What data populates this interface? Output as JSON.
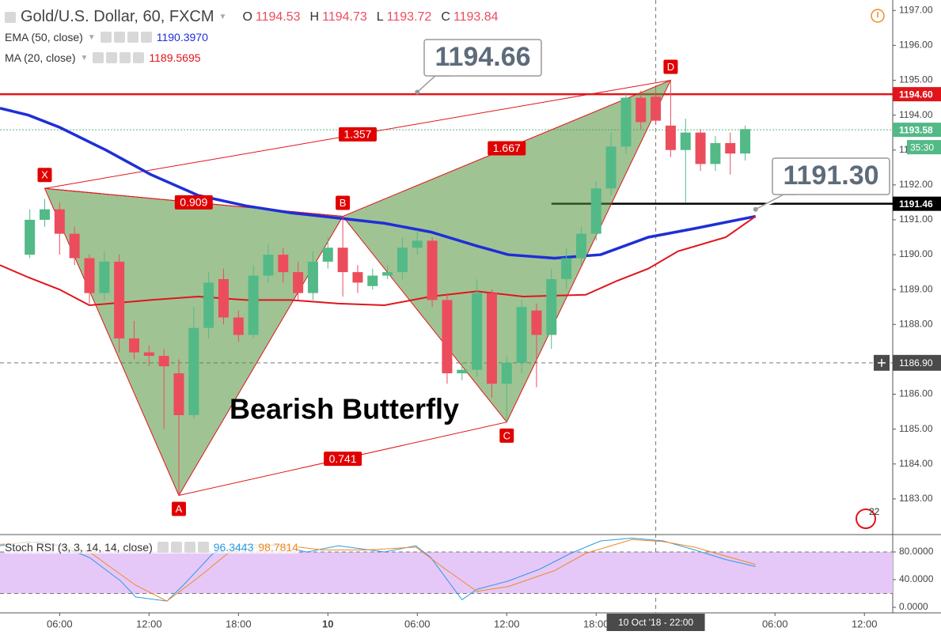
{
  "chart_data": [
    {
      "type": "candlestick",
      "title": "Gold/U.S. Dollar, 60, FXCM",
      "ohlc_labels": [
        "O",
        "H",
        "L",
        "C"
      ],
      "ohlc_values": [
        "1194.53",
        "1194.73",
        "1193.72",
        "1193.84"
      ],
      "x": [
        4,
        5,
        6,
        7,
        8,
        9,
        10,
        11,
        12,
        13,
        14,
        15,
        16,
        17,
        18,
        19,
        20,
        21,
        22,
        23,
        24,
        25,
        26,
        27,
        28,
        29,
        30,
        31,
        32,
        33,
        34,
        35,
        36,
        37,
        38,
        39,
        40,
        41,
        42,
        43,
        44,
        45,
        46,
        47,
        48,
        49,
        50,
        51,
        52
      ],
      "open": [
        1190.0,
        1191.0,
        1191.3,
        1190.6,
        1189.9,
        1188.9,
        1189.8,
        1187.6,
        1187.2,
        1187.1,
        1186.6,
        1185.4,
        1187.9,
        1189.3,
        1188.2,
        1187.7,
        1189.4,
        1190.0,
        1189.5,
        1188.9,
        1189.8,
        1190.2,
        1189.5,
        1189.1,
        1189.4,
        1189.5,
        1190.2,
        1190.4,
        1188.7,
        1186.6,
        1186.7,
        1188.9,
        1186.3,
        1186.9,
        1188.4,
        1187.7,
        1189.3,
        1189.9,
        1190.6,
        1191.9,
        1193.1,
        1194.5,
        1194.53,
        1193.7,
        1193.0,
        1193.5,
        1192.6,
        1193.2,
        1192.9
      ],
      "high": [
        1191.3,
        1191.6,
        1191.5,
        1190.8,
        1190.0,
        1190.1,
        1190.0,
        1188.1,
        1187.4,
        1187.3,
        1187.0,
        1188.5,
        1189.5,
        1189.6,
        1188.4,
        1189.7,
        1190.3,
        1190.2,
        1189.8,
        1190.1,
        1190.5,
        1191.1,
        1189.7,
        1189.6,
        1189.7,
        1190.5,
        1190.7,
        1190.5,
        1188.9,
        1186.9,
        1189.3,
        1189.0,
        1187.1,
        1188.7,
        1188.6,
        1189.6,
        1190.2,
        1190.8,
        1192.1,
        1193.5,
        1194.6,
        1194.7,
        1194.73,
        1195.0,
        1193.9,
        1193.6,
        1193.4,
        1193.5,
        1193.7
      ],
      "low": [
        1189.9,
        1190.8,
        1190.0,
        1189.7,
        1188.6,
        1188.7,
        1187.2,
        1187.0,
        1186.8,
        1185.0,
        1183.1,
        1185.3,
        1187.6,
        1188.0,
        1187.5,
        1187.6,
        1189.2,
        1189.2,
        1188.7,
        1188.7,
        1189.6,
        1188.8,
        1188.9,
        1189.0,
        1189.3,
        1189.3,
        1190.0,
        1188.5,
        1186.3,
        1186.4,
        1186.5,
        1185.9,
        1185.2,
        1186.6,
        1186.2,
        1187.3,
        1189.0,
        1189.7,
        1190.4,
        1191.7,
        1192.9,
        1193.6,
        1193.72,
        1192.8,
        1191.5,
        1192.4,
        1192.4,
        1192.3,
        1192.7
      ],
      "close": [
        1191.0,
        1191.3,
        1190.6,
        1189.9,
        1188.9,
        1189.8,
        1187.6,
        1187.2,
        1187.1,
        1186.8,
        1185.4,
        1187.9,
        1189.2,
        1188.2,
        1187.7,
        1189.4,
        1190.0,
        1189.5,
        1188.9,
        1189.8,
        1190.2,
        1189.5,
        1189.2,
        1189.4,
        1189.5,
        1190.2,
        1190.4,
        1188.7,
        1186.6,
        1186.7,
        1188.9,
        1186.3,
        1186.9,
        1188.5,
        1187.7,
        1189.3,
        1189.9,
        1190.6,
        1191.9,
        1193.1,
        1194.5,
        1193.8,
        1193.84,
        1193.0,
        1193.5,
        1192.6,
        1193.2,
        1192.9,
        1193.6
      ],
      "up_color": "#53b987",
      "down_color": "#eb4d5c",
      "xlim": [
        2,
        61.9
      ],
      "ylim": [
        1182,
        1197.3
      ],
      "yticks": [
        {
          "value": 1183,
          "label": "1183.00"
        },
        {
          "value": 1184,
          "label": "1184.00"
        },
        {
          "value": 1185,
          "label": "1185.00"
        },
        {
          "value": 1186,
          "label": "1186.00"
        },
        {
          "value": 1187,
          "label": "1187.00"
        },
        {
          "value": 1188,
          "label": "1188.00"
        },
        {
          "value": 1189,
          "label": "1189.00"
        },
        {
          "value": 1190,
          "label": "1190.00"
        },
        {
          "value": 1191,
          "label": "1191.00"
        },
        {
          "value": 1192,
          "label": "1192.00"
        },
        {
          "value": 1193,
          "label": "1193.00"
        },
        {
          "value": 1194,
          "label": "1194.00"
        },
        {
          "value": 1195,
          "label": "1195.00"
        },
        {
          "value": 1196,
          "label": "1196.00"
        },
        {
          "value": 1197,
          "label": "1197.00"
        }
      ],
      "series": [
        {
          "name": "EMA (50, close)",
          "value_label": "1190.3970",
          "color": "#1e2fd6",
          "x": [
            2.0,
            3.9,
            6.0,
            9.1,
            12.1,
            15.3,
            18.5,
            21.5,
            24.7,
            27.8,
            30.9,
            34.0,
            36.1,
            39.2,
            42.3,
            45.5,
            48.6,
            52.7
          ],
          "values": [
            1194.2,
            1194.0,
            1193.65,
            1193.0,
            1192.3,
            1191.7,
            1191.4,
            1191.2,
            1191.05,
            1190.9,
            1190.65,
            1190.25,
            1190.0,
            1189.9,
            1190.0,
            1190.5,
            1190.75,
            1191.1
          ]
        },
        {
          "name": "MA (20, close)",
          "value_label": "1189.5695",
          "color": "#e0151b",
          "x": [
            2.0,
            3.9,
            6.0,
            8.0,
            12.1,
            15.3,
            18.5,
            21.5,
            24.7,
            27.8,
            30.9,
            34.0,
            37.1,
            41.3,
            43.4,
            45.5,
            47.5,
            50.7,
            52.7
          ],
          "values": [
            1189.7,
            1189.35,
            1189.0,
            1188.55,
            1188.7,
            1188.8,
            1188.7,
            1188.7,
            1188.6,
            1188.55,
            1188.8,
            1188.95,
            1188.8,
            1188.85,
            1189.25,
            1189.6,
            1190.1,
            1190.5,
            1191.1
          ]
        }
      ],
      "price_lines": [
        {
          "value": 1194.6,
          "label": "1194.60",
          "color": "#e0151b"
        },
        {
          "value": 1193.58,
          "label": "1193.58",
          "color": "#53b987"
        },
        {
          "value": 1191.46,
          "label": "1191.46",
          "color": "#000000"
        }
      ],
      "countdown": "35:30",
      "crosshair": {
        "x": 46,
        "x_label": "10 Oct '18 - 22:00",
        "value": 1186.9,
        "label": "1186.90"
      },
      "pattern": {
        "name": "Bearish Butterfly",
        "labels": [
          "X",
          "A",
          "B",
          "C",
          "D"
        ],
        "x": [
          5,
          14,
          25,
          36,
          47
        ],
        "values": [
          1191.9,
          1183.1,
          1191.1,
          1185.2,
          1195.0
        ],
        "ratios": [
          0.909,
          1.357,
          1.667,
          0.741
        ],
        "color": "#e0151b"
      },
      "callouts": [
        1194.66,
        {
          "value": 1191.3,
          "label": "1191.30"
        }
      ],
      "badge": "22"
    },
    {
      "type": "line",
      "title": "Stoch RSI (3, 3, 14, 14, close)",
      "xlim": [
        2,
        61.9
      ],
      "ylim": [
        -8,
        104
      ],
      "yticks": [
        {
          "value": 0,
          "label": "0.0000"
        },
        {
          "value": 40,
          "label": "40.0000"
        },
        {
          "value": 80,
          "label": "80.0000"
        }
      ],
      "band": [
        20,
        80
      ],
      "xticks": [
        {
          "value": 6,
          "label": "06:00"
        },
        {
          "value": 12,
          "label": "12:00"
        },
        {
          "value": 18,
          "label": "18:00"
        },
        {
          "value": 24,
          "label": "10"
        },
        {
          "value": 30,
          "label": "06:00"
        },
        {
          "value": 36,
          "label": "12:00"
        },
        {
          "value": 42,
          "label": "18:00"
        },
        {
          "value": 54,
          "label": "06:00"
        },
        {
          "value": 60,
          "label": "12:00"
        }
      ],
      "series": [
        {
          "value_label": "96.3443",
          "color": "#2e9be0",
          "x": [
            2.0,
            3.9,
            6.0,
            8.0,
            10.1,
            11.1,
            13.2,
            14.3,
            16.3,
            18.5,
            20.5,
            22.6,
            24.7,
            27.8,
            29.9,
            30.9,
            33.0,
            34.0,
            36.1,
            38.2,
            40.3,
            42.3,
            44.4,
            46.5,
            48.6,
            50.7,
            52.7
          ],
          "values": [
            89,
            95,
            89,
            72,
            38,
            15,
            9,
            32,
            78,
            91,
            89,
            80,
            89,
            80,
            89,
            72,
            11,
            26,
            38,
            55,
            78,
            96,
            100,
            96,
            83,
            69,
            59
          ]
        },
        {
          "value_label": "98.7814",
          "color": "#f08a24",
          "x": [
            2.0,
            4.9,
            8.0,
            11.1,
            13.2,
            15.3,
            17.4,
            20.5,
            23.6,
            26.7,
            29.9,
            31.9,
            34.0,
            36.1,
            39.2,
            41.3,
            44.4,
            46.5,
            48.6,
            50.7,
            52.7
          ],
          "values": [
            91,
            95,
            80,
            32,
            9,
            43,
            80,
            91,
            83,
            83,
            87,
            55,
            23,
            30,
            53,
            78,
            98,
            95,
            87,
            74,
            62
          ]
        }
      ]
    }
  ]
}
